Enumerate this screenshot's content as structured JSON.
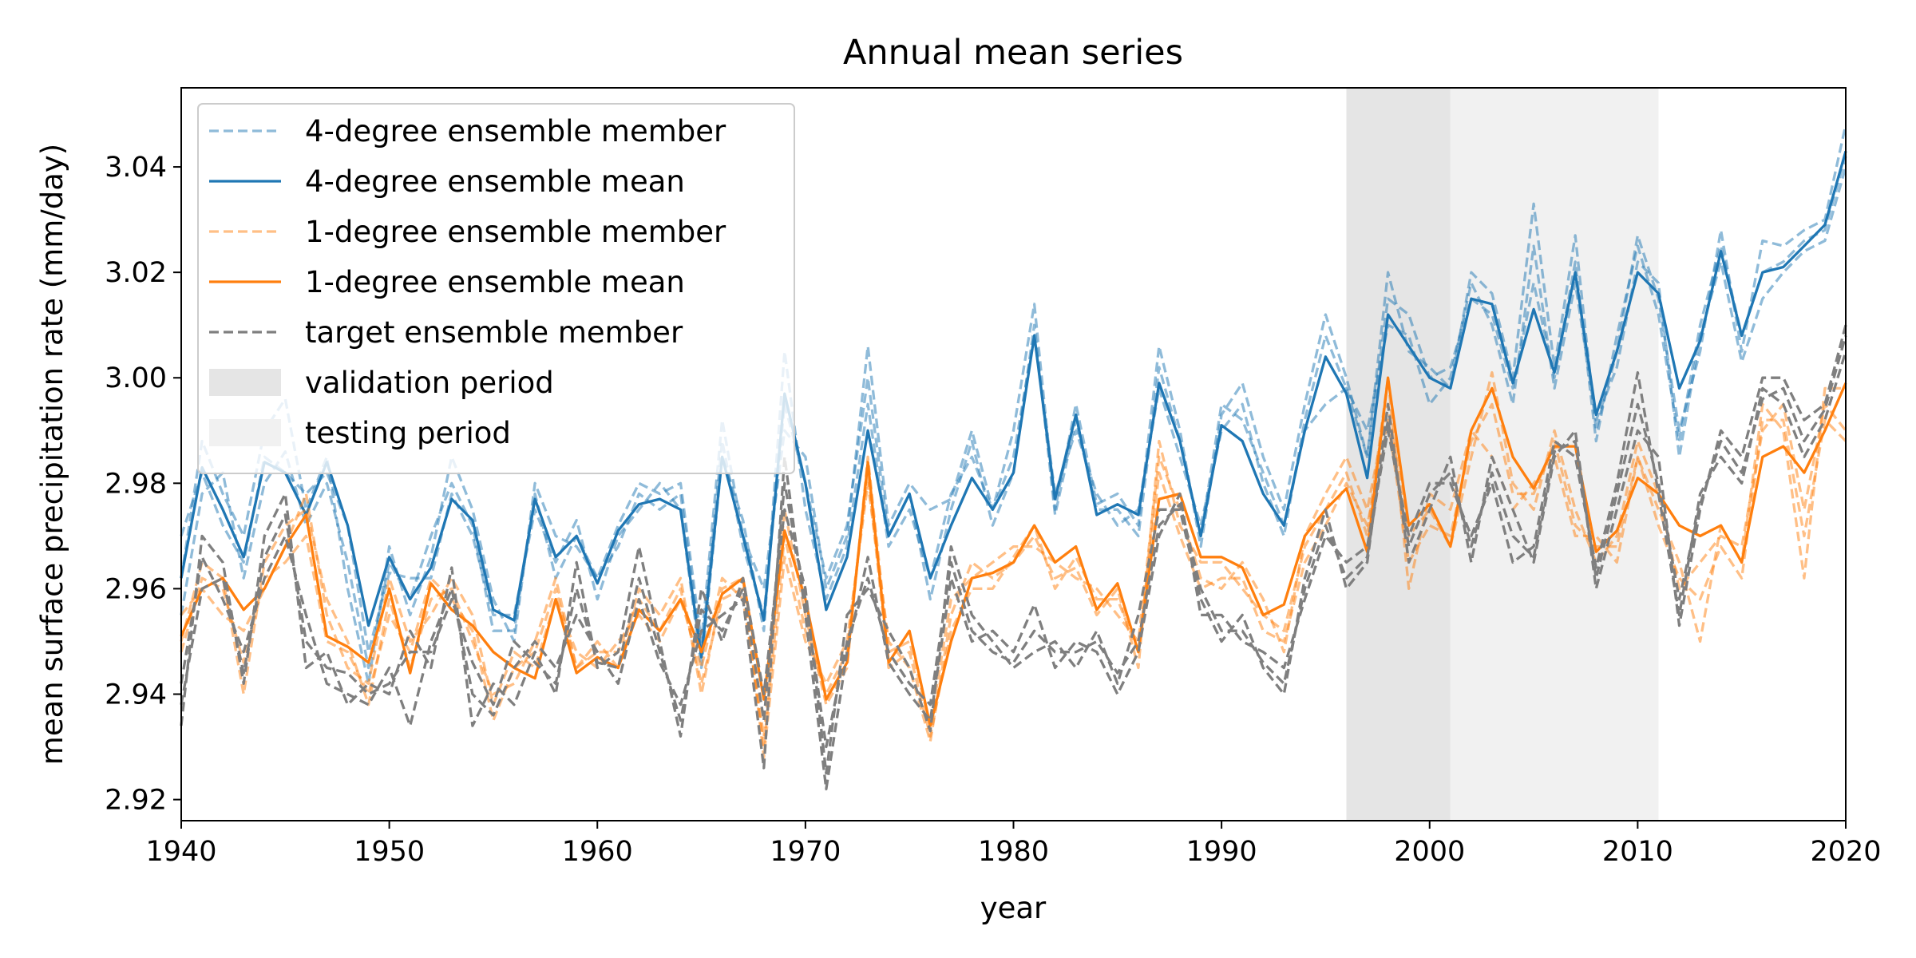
{
  "chart_data": {
    "type": "line",
    "title": "Annual mean series",
    "xlabel": "year",
    "ylabel": "mean surface precipitation rate (mm/day)",
    "xlim": [
      1940,
      2020
    ],
    "ylim": [
      2.916,
      3.055
    ],
    "xticks": [
      1940,
      1950,
      1960,
      1970,
      1980,
      1990,
      2000,
      2010,
      2020
    ],
    "yticks": [
      "2.92",
      "2.94",
      "2.96",
      "2.98",
      "3.00",
      "3.02",
      "3.04"
    ],
    "grid": false,
    "legend_position": "upper-left",
    "legend": [
      {
        "label": "4-degree ensemble member",
        "kind": "line",
        "color": "#1f77b4",
        "dash": true,
        "opacity": 0.5
      },
      {
        "label": "4-degree ensemble mean",
        "kind": "line",
        "color": "#1f77b4",
        "dash": false,
        "opacity": 1
      },
      {
        "label": "1-degree ensemble member",
        "kind": "line",
        "color": "#ff7f0e",
        "dash": true,
        "opacity": 0.5
      },
      {
        "label": "1-degree ensemble mean",
        "kind": "line",
        "color": "#ff7f0e",
        "dash": false,
        "opacity": 1
      },
      {
        "label": "target ensemble member",
        "kind": "line",
        "color": "#7f7f7f",
        "dash": true,
        "opacity": 1
      },
      {
        "label": "validation period",
        "kind": "patch",
        "color": "#e5e5e5"
      },
      {
        "label": "testing period",
        "kind": "patch",
        "color": "#f1f1f1"
      }
    ],
    "shaded_periods": [
      {
        "name": "validation period",
        "x0": 1996,
        "x1": 2001,
        "color": "#e5e5e5"
      },
      {
        "name": "testing period",
        "x0": 2001,
        "x1": 2011,
        "color": "#f1f1f1"
      }
    ],
    "x": [
      1940,
      1941,
      1942,
      1943,
      1944,
      1945,
      1946,
      1947,
      1948,
      1949,
      1950,
      1951,
      1952,
      1953,
      1954,
      1955,
      1956,
      1957,
      1958,
      1959,
      1960,
      1961,
      1962,
      1963,
      1964,
      1965,
      1966,
      1967,
      1968,
      1969,
      1970,
      1971,
      1972,
      1973,
      1974,
      1975,
      1976,
      1977,
      1978,
      1979,
      1980,
      1981,
      1982,
      1983,
      1984,
      1985,
      1986,
      1987,
      1988,
      1989,
      1990,
      1991,
      1992,
      1993,
      1994,
      1995,
      1996,
      1997,
      1998,
      1999,
      2000,
      2001,
      2002,
      2003,
      2004,
      2005,
      2006,
      2007,
      2008,
      2009,
      2010,
      2011,
      2012,
      2013,
      2014,
      2015,
      2016,
      2017,
      2018,
      2019,
      2020
    ],
    "series": [
      {
        "group": "4-degree ensemble member",
        "color": "#1f77b4",
        "dash": true,
        "opacity": 0.5,
        "values": [
          2.962,
          2.988,
          2.978,
          2.97,
          2.99,
          2.996,
          2.975,
          2.985,
          2.96,
          2.942,
          2.968,
          2.955,
          2.966,
          2.985,
          2.975,
          2.958,
          2.95,
          2.98,
          2.97,
          2.968,
          2.962,
          2.972,
          2.98,
          2.978,
          2.98,
          2.95,
          2.992,
          2.97,
          2.96,
          2.99,
          2.985,
          2.96,
          2.97,
          3.006,
          2.972,
          2.98,
          2.975,
          2.977,
          2.99,
          2.975,
          2.99,
          3.014,
          2.975,
          2.995,
          2.976,
          2.978,
          2.972,
          3.006,
          2.99,
          2.968,
          2.993,
          2.999,
          2.985,
          2.975,
          2.995,
          3.012,
          3.0,
          2.985,
          3.02,
          3.005,
          3.002,
          2.998,
          3.02,
          3.016,
          3.0,
          3.033,
          3.002,
          3.027,
          2.99,
          3.005,
          3.027,
          3.015,
          2.99,
          3.005,
          3.028,
          3.005,
          3.026,
          3.025,
          3.028,
          3.03,
          3.048
        ]
      },
      {
        "group": "4-degree ensemble member",
        "color": "#1f77b4",
        "dash": true,
        "opacity": 0.5,
        "values": [
          2.97,
          2.982,
          2.972,
          2.965,
          2.985,
          2.982,
          2.978,
          2.982,
          2.972,
          2.948,
          2.963,
          2.962,
          2.962,
          2.978,
          2.97,
          2.955,
          2.955,
          2.975,
          2.965,
          2.973,
          2.958,
          2.97,
          2.975,
          2.98,
          2.975,
          2.945,
          2.985,
          2.973,
          2.952,
          3.005,
          2.975,
          2.958,
          2.968,
          2.995,
          2.968,
          2.975,
          2.962,
          2.978,
          2.985,
          2.975,
          2.985,
          3.008,
          2.978,
          2.99,
          2.978,
          2.972,
          2.975,
          2.998,
          2.985,
          2.972,
          2.99,
          2.995,
          2.98,
          2.97,
          2.992,
          3.008,
          2.998,
          2.985,
          3.015,
          3.012,
          3.0,
          3.002,
          3.015,
          3.012,
          2.998,
          3.018,
          3.0,
          3.022,
          2.988,
          3.008,
          3.025,
          3.012,
          2.988,
          3.01,
          3.025,
          3.008,
          3.02,
          3.022,
          3.026,
          3.028,
          3.042
        ]
      },
      {
        "group": "4-degree ensemble member",
        "color": "#1f77b4",
        "dash": true,
        "opacity": 0.5,
        "values": [
          2.955,
          2.978,
          2.982,
          2.962,
          2.98,
          2.986,
          2.972,
          2.98,
          2.965,
          2.945,
          2.965,
          2.958,
          2.97,
          2.98,
          2.972,
          2.952,
          2.952,
          2.978,
          2.962,
          2.97,
          2.962,
          2.968,
          2.978,
          2.975,
          2.978,
          2.948,
          2.988,
          2.968,
          2.955,
          2.995,
          2.98,
          2.962,
          2.972,
          3.0,
          2.97,
          2.978,
          2.958,
          2.975,
          2.988,
          2.972,
          2.982,
          3.01,
          2.974,
          2.992,
          2.975,
          2.975,
          2.97,
          3.002,
          2.988,
          2.97,
          2.995,
          2.992,
          2.982,
          2.972,
          2.99,
          2.995,
          2.998,
          2.99,
          3.01,
          3.008,
          2.995,
          3.0,
          3.018,
          3.01,
          2.995,
          3.025,
          2.998,
          3.018,
          2.992,
          3.002,
          3.022,
          3.018,
          2.985,
          3.008,
          3.022,
          3.003,
          3.015,
          3.02,
          3.024,
          3.026,
          3.04
        ]
      },
      {
        "group": "4-degree ensemble mean",
        "color": "#1f77b4",
        "dash": false,
        "opacity": 1,
        "values": [
          2.962,
          2.983,
          2.975,
          2.966,
          2.984,
          2.982,
          2.974,
          2.984,
          2.972,
          2.953,
          2.966,
          2.958,
          2.964,
          2.977,
          2.973,
          2.956,
          2.954,
          2.977,
          2.966,
          2.97,
          2.961,
          2.971,
          2.976,
          2.977,
          2.975,
          2.947,
          2.985,
          2.97,
          2.954,
          2.997,
          2.98,
          2.956,
          2.966,
          2.99,
          2.97,
          2.978,
          2.962,
          2.972,
          2.981,
          2.975,
          2.982,
          3.008,
          2.977,
          2.993,
          2.974,
          2.976,
          2.974,
          2.999,
          2.988,
          2.97,
          2.991,
          2.988,
          2.978,
          2.972,
          2.99,
          3.004,
          2.997,
          2.981,
          3.012,
          3.006,
          3.0,
          2.998,
          3.015,
          3.014,
          2.999,
          3.013,
          3.001,
          3.02,
          2.993,
          3.005,
          3.02,
          3.016,
          2.998,
          3.007,
          3.024,
          3.008,
          3.02,
          3.021,
          3.025,
          3.029,
          3.043
        ]
      },
      {
        "group": "1-degree ensemble member",
        "color": "#ff7f0e",
        "dash": true,
        "opacity": 0.5,
        "values": [
          2.95,
          2.965,
          2.962,
          2.94,
          2.965,
          2.972,
          2.975,
          2.958,
          2.95,
          2.938,
          2.958,
          2.945,
          2.958,
          2.96,
          2.95,
          2.94,
          2.942,
          2.95,
          2.962,
          2.945,
          2.95,
          2.945,
          2.96,
          2.955,
          2.962,
          2.94,
          2.96,
          2.962,
          2.928,
          2.966,
          2.95,
          2.942,
          2.95,
          2.98,
          2.95,
          2.945,
          2.931,
          2.955,
          2.965,
          2.962,
          2.965,
          2.97,
          2.962,
          2.964,
          2.955,
          2.96,
          2.945,
          2.988,
          2.972,
          2.965,
          2.965,
          2.96,
          2.955,
          2.952,
          2.968,
          2.975,
          2.982,
          2.97,
          3.0,
          2.96,
          2.978,
          2.975,
          2.99,
          2.985,
          2.975,
          2.98,
          2.985,
          2.97,
          2.97,
          2.965,
          2.985,
          2.975,
          2.965,
          2.95,
          2.972,
          2.965,
          2.995,
          2.99,
          2.962,
          2.998,
          2.998
        ]
      },
      {
        "group": "1-degree ensemble member",
        "color": "#ff7f0e",
        "dash": true,
        "opacity": 0.5,
        "values": [
          2.955,
          2.96,
          2.955,
          2.952,
          2.96,
          2.968,
          2.978,
          2.955,
          2.945,
          2.942,
          2.962,
          2.95,
          2.955,
          2.962,
          2.955,
          2.938,
          2.948,
          2.945,
          2.958,
          2.948,
          2.945,
          2.95,
          2.955,
          2.95,
          2.958,
          2.945,
          2.962,
          2.958,
          2.932,
          2.975,
          2.955,
          2.938,
          2.945,
          2.985,
          2.948,
          2.95,
          2.934,
          2.958,
          2.962,
          2.965,
          2.968,
          2.968,
          2.965,
          2.962,
          2.96,
          2.955,
          2.95,
          2.985,
          2.975,
          2.962,
          2.96,
          2.965,
          2.958,
          2.948,
          2.97,
          2.978,
          2.985,
          2.975,
          2.995,
          2.97,
          2.975,
          2.968,
          2.985,
          3.001,
          2.98,
          2.975,
          2.99,
          2.975,
          2.965,
          2.97,
          2.988,
          2.978,
          2.96,
          2.965,
          2.97,
          2.968,
          2.99,
          2.995,
          2.975,
          2.995,
          2.99
        ]
      },
      {
        "group": "1-degree ensemble member",
        "color": "#ff7f0e",
        "dash": true,
        "opacity": 0.5,
        "values": [
          2.948,
          2.962,
          2.96,
          2.946,
          2.962,
          2.965,
          2.97,
          2.95,
          2.948,
          2.94,
          2.955,
          2.948,
          2.962,
          2.958,
          2.952,
          2.935,
          2.945,
          2.948,
          2.96,
          2.945,
          2.948,
          2.948,
          2.958,
          2.952,
          2.96,
          2.942,
          2.958,
          2.96,
          2.93,
          2.97,
          2.952,
          2.94,
          2.948,
          2.982,
          2.945,
          2.948,
          2.932,
          2.952,
          2.96,
          2.96,
          2.966,
          2.972,
          2.96,
          2.966,
          2.958,
          2.958,
          2.948,
          2.982,
          2.97,
          2.96,
          2.962,
          2.962,
          2.952,
          2.95,
          2.965,
          2.972,
          2.98,
          2.972,
          2.992,
          2.965,
          2.972,
          2.97,
          2.988,
          2.995,
          2.978,
          2.978,
          2.988,
          2.972,
          2.968,
          2.968,
          2.985,
          2.972,
          2.962,
          2.958,
          2.968,
          2.962,
          2.992,
          2.992,
          2.97,
          2.992,
          2.988
        ]
      },
      {
        "group": "1-degree ensemble mean",
        "color": "#ff7f0e",
        "dash": false,
        "opacity": 1,
        "values": [
          2.951,
          2.96,
          2.962,
          2.956,
          2.96,
          2.968,
          2.974,
          2.951,
          2.949,
          2.946,
          2.96,
          2.944,
          2.961,
          2.956,
          2.953,
          2.948,
          2.945,
          2.943,
          2.958,
          2.944,
          2.947,
          2.945,
          2.956,
          2.952,
          2.958,
          2.948,
          2.959,
          2.962,
          2.939,
          2.971,
          2.958,
          2.939,
          2.946,
          2.984,
          2.946,
          2.952,
          2.934,
          2.95,
          2.962,
          2.963,
          2.965,
          2.972,
          2.965,
          2.968,
          2.956,
          2.961,
          2.948,
          2.977,
          2.978,
          2.966,
          2.966,
          2.964,
          2.955,
          2.957,
          2.97,
          2.975,
          2.979,
          2.967,
          3.0,
          2.972,
          2.976,
          2.968,
          2.99,
          2.998,
          2.985,
          2.979,
          2.987,
          2.987,
          2.967,
          2.971,
          2.981,
          2.978,
          2.972,
          2.97,
          2.972,
          2.965,
          2.985,
          2.987,
          2.982,
          2.99,
          2.999
        ]
      },
      {
        "group": "target ensemble member",
        "color": "#7f7f7f",
        "dash": true,
        "opacity": 1,
        "values": [
          2.934,
          2.97,
          2.965,
          2.942,
          2.97,
          2.978,
          2.945,
          2.948,
          2.938,
          2.942,
          2.94,
          2.952,
          2.945,
          2.964,
          2.934,
          2.942,
          2.938,
          2.948,
          2.94,
          2.965,
          2.945,
          2.948,
          2.968,
          2.95,
          2.932,
          2.96,
          2.95,
          2.962,
          2.94,
          2.975,
          2.96,
          2.925,
          2.955,
          2.96,
          2.952,
          2.945,
          2.933,
          2.968,
          2.955,
          2.95,
          2.945,
          2.948,
          2.95,
          2.945,
          2.952,
          2.942,
          2.955,
          2.975,
          2.975,
          2.958,
          2.95,
          2.955,
          2.945,
          2.94,
          2.962,
          2.975,
          2.96,
          2.965,
          2.995,
          2.965,
          2.975,
          2.985,
          2.965,
          2.985,
          2.975,
          2.965,
          2.985,
          2.99,
          2.96,
          2.975,
          2.99,
          2.985,
          2.953,
          2.975,
          2.99,
          2.985,
          3.0,
          3.0,
          2.992,
          2.995,
          3.01
        ]
      },
      {
        "group": "target ensemble member",
        "color": "#7f7f7f",
        "dash": true,
        "opacity": 1,
        "values": [
          2.942,
          2.966,
          2.958,
          2.948,
          2.962,
          2.97,
          2.955,
          2.942,
          2.94,
          2.938,
          2.945,
          2.934,
          2.95,
          2.96,
          2.94,
          2.936,
          2.945,
          2.95,
          2.945,
          2.955,
          2.948,
          2.942,
          2.958,
          2.946,
          2.938,
          2.952,
          2.955,
          2.958,
          2.926,
          2.985,
          2.955,
          2.922,
          2.948,
          2.966,
          2.946,
          2.94,
          2.935,
          2.962,
          2.95,
          2.952,
          2.948,
          2.957,
          2.945,
          2.95,
          2.948,
          2.94,
          2.948,
          2.97,
          2.978,
          2.955,
          2.955,
          2.95,
          2.948,
          2.945,
          2.958,
          2.97,
          2.965,
          2.968,
          2.99,
          2.97,
          2.98,
          2.98,
          2.97,
          2.98,
          2.965,
          2.968,
          2.988,
          2.985,
          2.964,
          2.98,
          3.001,
          2.978,
          2.955,
          2.978,
          2.985,
          2.98,
          2.998,
          2.995,
          2.985,
          2.992,
          3.005
        ]
      },
      {
        "group": "target ensemble member",
        "color": "#7f7f7f",
        "dash": true,
        "opacity": 1,
        "values": [
          2.938,
          2.96,
          2.962,
          2.944,
          2.966,
          2.974,
          2.95,
          2.945,
          2.944,
          2.94,
          2.942,
          2.948,
          2.948,
          2.958,
          2.946,
          2.938,
          2.95,
          2.946,
          2.942,
          2.96,
          2.946,
          2.945,
          2.962,
          2.948,
          2.935,
          2.956,
          2.952,
          2.96,
          2.935,
          2.98,
          2.958,
          2.93,
          2.95,
          2.962,
          2.948,
          2.942,
          2.938,
          2.965,
          2.952,
          2.948,
          2.946,
          2.952,
          2.948,
          2.948,
          2.95,
          2.944,
          2.95,
          2.972,
          2.976,
          2.96,
          2.952,
          2.952,
          2.946,
          2.942,
          2.96,
          2.972,
          2.962,
          2.966,
          2.992,
          2.968,
          2.978,
          2.982,
          2.968,
          2.982,
          2.97,
          2.966,
          2.986,
          2.988,
          2.962,
          2.978,
          2.995,
          2.98,
          2.958,
          2.976,
          2.988,
          2.982,
          2.996,
          2.998,
          2.988,
          2.994,
          3.008
        ]
      }
    ]
  }
}
